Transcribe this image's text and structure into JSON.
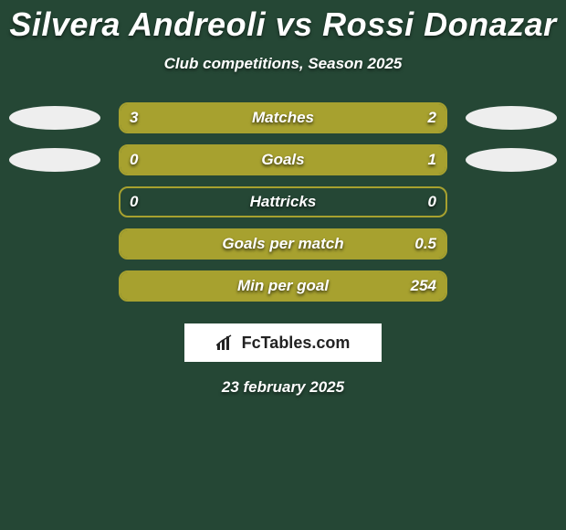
{
  "title": "Silvera Andreoli vs Rossi Donazar",
  "subtitle": "Club competitions, Season 2025",
  "date": "23 february 2025",
  "logo_text": "FcTables.com",
  "colors": {
    "background": "#254735",
    "bar_outline": "#a7a12f",
    "bar_fill": "#a7a12f",
    "text": "#ffffff",
    "oval": "#eeeeee",
    "logo_bg": "#ffffff",
    "logo_text": "#222222"
  },
  "rows": [
    {
      "label": "Matches",
      "left_value": "3",
      "right_value": "2",
      "left_oval": true,
      "right_oval": true,
      "left_pct": 60,
      "right_pct": 40
    },
    {
      "label": "Goals",
      "left_value": "0",
      "right_value": "1",
      "left_oval": true,
      "right_oval": true,
      "left_pct": 0,
      "right_pct": 100
    },
    {
      "label": "Hattricks",
      "left_value": "0",
      "right_value": "0",
      "left_oval": false,
      "right_oval": false,
      "left_pct": 0,
      "right_pct": 0
    },
    {
      "label": "Goals per match",
      "left_value": "",
      "right_value": "0.5",
      "left_oval": false,
      "right_oval": false,
      "left_pct": 0,
      "right_pct": 100
    },
    {
      "label": "Min per goal",
      "left_value": "",
      "right_value": "254",
      "left_oval": false,
      "right_oval": false,
      "left_pct": 0,
      "right_pct": 100
    }
  ]
}
